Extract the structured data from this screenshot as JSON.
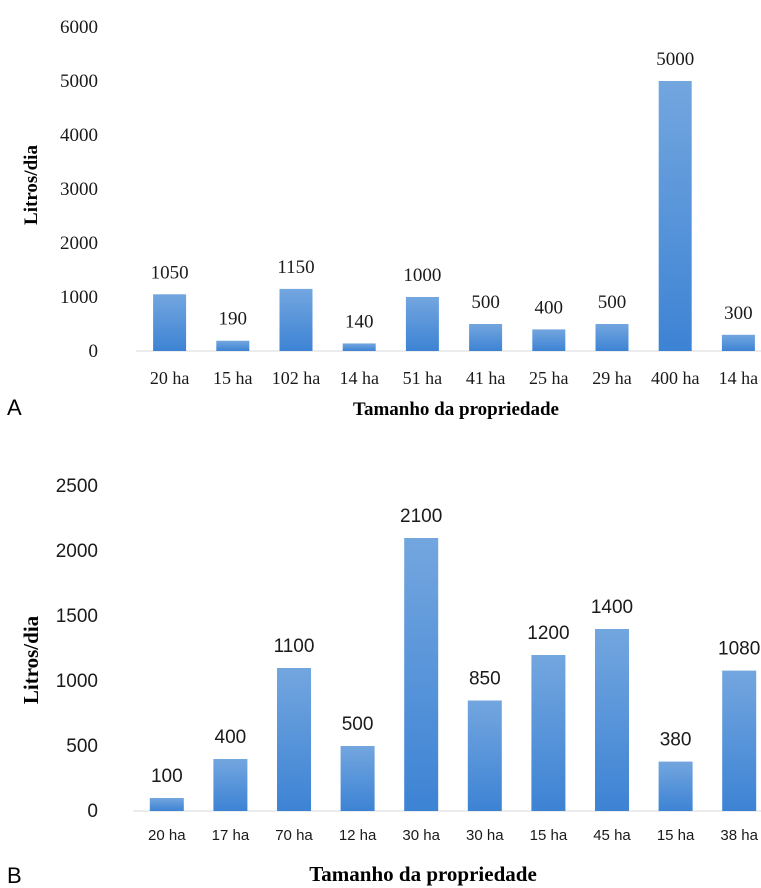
{
  "panels": {
    "a": {
      "letter": "A"
    },
    "b": {
      "letter": "B"
    }
  },
  "colors": {
    "bar_light": "#73a6df",
    "bar_dark": "#3d83d4",
    "text": "#1a1a1a"
  },
  "chart_data": [
    {
      "type": "bar",
      "title": "",
      "xlabel": "Tamanho da propriedade",
      "ylabel": "Litros/dia",
      "ylim": [
        0,
        6000
      ],
      "yticks": [
        "0",
        "1000",
        "2000",
        "3000",
        "4000",
        "5000",
        "6000"
      ],
      "categories": [
        "20 ha",
        "15 ha",
        "102 ha",
        "14 ha",
        "51 ha",
        "41 ha",
        "25 ha",
        "29 ha",
        "400 ha",
        "14 ha"
      ],
      "values": [
        1050,
        190,
        1150,
        140,
        1000,
        500,
        400,
        500,
        5000,
        300
      ],
      "data_labels": [
        "1050",
        "190",
        "1150",
        "140",
        "1000",
        "500",
        "400",
        "500",
        "5000",
        "300"
      ],
      "grid": false,
      "legend": "none"
    },
    {
      "type": "bar",
      "title": "",
      "xlabel": "Tamanho da propriedade",
      "ylabel": "Litros/dia",
      "ylim": [
        0,
        2500
      ],
      "yticks": [
        "0",
        "500",
        "1000",
        "1500",
        "2000",
        "2500"
      ],
      "categories": [
        "20 ha",
        "17 ha",
        "70 ha",
        "12  ha",
        "30 ha",
        "30  ha",
        "15 ha",
        "45 ha",
        "15 ha",
        "38 ha"
      ],
      "values": [
        100,
        400,
        1100,
        500,
        2100,
        850,
        1200,
        1400,
        380,
        1080
      ],
      "data_labels": [
        "100",
        "400",
        "1100",
        "500",
        "2100",
        "850",
        "1200",
        "1400",
        "380",
        "1080"
      ],
      "grid": false,
      "legend": "none"
    }
  ]
}
